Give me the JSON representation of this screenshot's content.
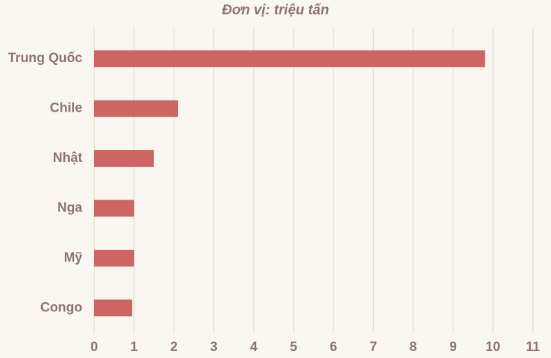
{
  "chart_data": {
    "type": "hbar",
    "title": "Đơn vị: triệu tấn",
    "categories": [
      "Trung Quốc",
      "Chile",
      "Nhật",
      "Nga",
      "Mỹ",
      "Congo"
    ],
    "values": [
      9.8,
      2.1,
      1.5,
      1.0,
      1.0,
      0.95
    ],
    "color": "#cd6662",
    "xlim": [
      0,
      11
    ],
    "xticks": [
      0,
      1,
      2,
      3,
      4,
      5,
      6,
      7,
      8,
      9,
      10,
      11
    ],
    "grid": true
  }
}
